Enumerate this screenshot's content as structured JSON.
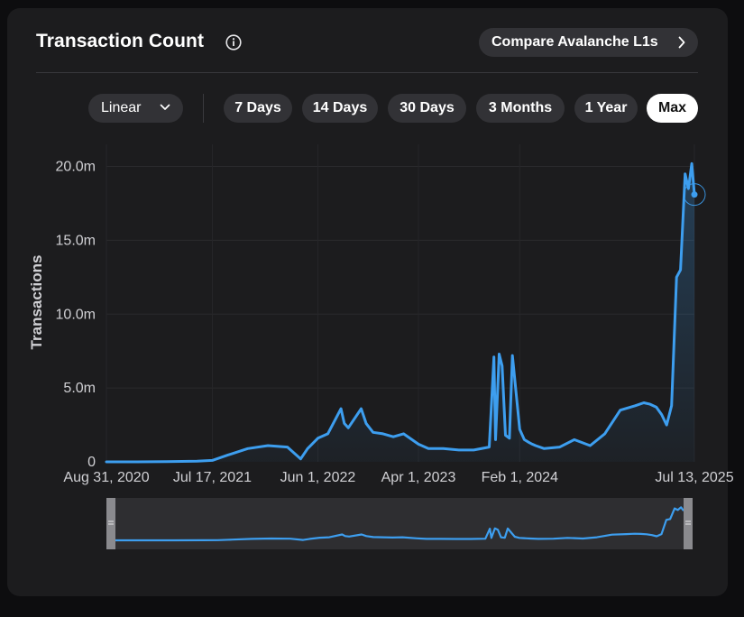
{
  "header": {
    "title": "Transaction Count",
    "compare_label": "Compare Avalanche L1s"
  },
  "controls": {
    "scale_label": "Linear",
    "ranges": [
      "7 Days",
      "14 Days",
      "30 Days",
      "3 Months",
      "1 Year",
      "Max"
    ],
    "active_range": "Max"
  },
  "icons": {
    "info": "info-icon",
    "compare": "chevron-right-icon",
    "scale": "chevron-down-icon"
  },
  "colors": {
    "line": "#3d9eef",
    "card_bg": "#1c1c1e",
    "active_pill_bg": "#ffffff"
  },
  "chart_data": {
    "type": "area",
    "title": "Transaction Count",
    "xlabel": "",
    "ylabel": "Transactions",
    "yscale": "linear",
    "ylim": [
      0,
      21500000
    ],
    "y_ticks": [
      0,
      5000000,
      10000000,
      15000000,
      20000000
    ],
    "y_tick_labels": [
      "0",
      "5.0m",
      "10.0m",
      "15.0m",
      "20.0m"
    ],
    "xlim": [
      "2020-08-31",
      "2025-07-13"
    ],
    "x_tick_labels": [
      "Aug 31, 2020",
      "Jul 17, 2021",
      "Jun 1, 2022",
      "Apr 1, 2023",
      "Feb 1, 2024",
      "Jul 13, 2025"
    ],
    "x_ticks": [
      "2020-08-31",
      "2021-07-17",
      "2022-06-01",
      "2023-04-01",
      "2024-02-01",
      "2025-07-13"
    ],
    "grid": true,
    "legend": "none",
    "series": [
      {
        "x": [
          "2020-08-31",
          "2020-12-01",
          "2021-03-01",
          "2021-06-01",
          "2021-07-17",
          "2021-09-01",
          "2021-11-01",
          "2022-01-01",
          "2022-03-01",
          "2022-04-10",
          "2022-05-01",
          "2022-06-01",
          "2022-07-01",
          "2022-08-10",
          "2022-08-20",
          "2022-09-01",
          "2022-10-10",
          "2022-10-25",
          "2022-11-15",
          "2022-12-15",
          "2023-01-15",
          "2023-02-15",
          "2023-04-01",
          "2023-05-01",
          "2023-06-15",
          "2023-08-01",
          "2023-09-15",
          "2023-11-01",
          "2023-11-15",
          "2023-11-20",
          "2023-12-01",
          "2023-12-10",
          "2023-12-20",
          "2024-01-01",
          "2024-01-10",
          "2024-02-01",
          "2024-02-15",
          "2024-03-01",
          "2024-03-10",
          "2024-03-20",
          "2024-04-15",
          "2024-06-01",
          "2024-07-15",
          "2024-09-01",
          "2024-10-15",
          "2024-12-01",
          "2025-01-15",
          "2025-02-10",
          "2025-03-01",
          "2025-03-20",
          "2025-04-05",
          "2025-04-20",
          "2025-05-05",
          "2025-05-20",
          "2025-06-01",
          "2025-06-15",
          "2025-06-25",
          "2025-07-05",
          "2025-07-13"
        ],
        "y": [
          0,
          0,
          10000,
          50000,
          100000,
          450000,
          900000,
          1100000,
          1000000,
          200000,
          900000,
          1600000,
          1900000,
          3600000,
          2600000,
          2300000,
          3600000,
          2600000,
          2000000,
          1900000,
          1700000,
          1900000,
          1200000,
          900000,
          900000,
          800000,
          800000,
          1000000,
          7100000,
          1500000,
          7300000,
          6500000,
          1800000,
          1600000,
          7200000,
          2200000,
          1500000,
          1300000,
          1200000,
          1100000,
          900000,
          1000000,
          1500000,
          1100000,
          1900000,
          3500000,
          3800000,
          4000000,
          3900000,
          3700000,
          3200000,
          2500000,
          3800000,
          12500000,
          13000000,
          19500000,
          18500000,
          20200000,
          18100000
        ]
      }
    ]
  }
}
